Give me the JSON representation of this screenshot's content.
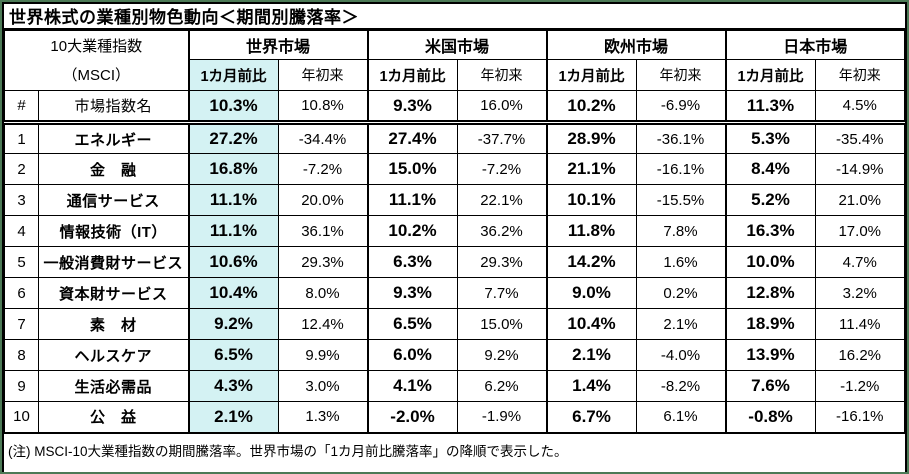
{
  "title": "世界株式の業種別物色動向＜期間別騰落率＞",
  "colors": {
    "highlight_cyan": "#d4f2f3",
    "outer_frame_green": "#4c7a56",
    "table_border": "#000000",
    "text": "#000000",
    "background": "#ffffff"
  },
  "header": {
    "index_group_line1": "10大業種指数",
    "index_group_line2": "（MSCI）",
    "markets": [
      "世界市場",
      "米国市場",
      "欧州市場",
      "日本市場"
    ],
    "sub_monthly": "1カ月前比",
    "sub_ytd": "年初来",
    "rank_header": "#",
    "name_header": "市場指数名"
  },
  "table": {
    "index_row": {
      "values": [
        "10.3%",
        "10.8%",
        "9.3%",
        "16.0%",
        "10.2%",
        "-6.9%",
        "11.3%",
        "4.5%"
      ]
    },
    "rows": [
      {
        "rank": "1",
        "name": "エネルギー",
        "values": [
          "27.2%",
          "-34.4%",
          "27.4%",
          "-37.7%",
          "28.9%",
          "-36.1%",
          "5.3%",
          "-35.4%"
        ]
      },
      {
        "rank": "2",
        "name": "金　融",
        "values": [
          "16.8%",
          "-7.2%",
          "15.0%",
          "-7.2%",
          "21.1%",
          "-16.1%",
          "8.4%",
          "-14.9%"
        ]
      },
      {
        "rank": "3",
        "name": "通信サービス",
        "values": [
          "11.1%",
          "20.0%",
          "11.1%",
          "22.1%",
          "10.1%",
          "-15.5%",
          "5.2%",
          "21.0%"
        ]
      },
      {
        "rank": "4",
        "name": "情報技術（IT）",
        "values": [
          "11.1%",
          "36.1%",
          "10.2%",
          "36.2%",
          "11.8%",
          "7.8%",
          "16.3%",
          "17.0%"
        ]
      },
      {
        "rank": "5",
        "name": "一般消費財サービス",
        "values": [
          "10.6%",
          "29.3%",
          "6.3%",
          "29.3%",
          "14.2%",
          "1.6%",
          "10.0%",
          "4.7%"
        ]
      },
      {
        "rank": "6",
        "name": "資本財サービス",
        "values": [
          "10.4%",
          "8.0%",
          "9.3%",
          "7.7%",
          "9.0%",
          "0.2%",
          "12.8%",
          "3.2%"
        ]
      },
      {
        "rank": "7",
        "name": "素　材",
        "values": [
          "9.2%",
          "12.4%",
          "6.5%",
          "15.0%",
          "10.4%",
          "2.1%",
          "18.9%",
          "11.4%"
        ]
      },
      {
        "rank": "8",
        "name": "ヘルスケア",
        "values": [
          "6.5%",
          "9.9%",
          "6.0%",
          "9.2%",
          "2.1%",
          "-4.0%",
          "13.9%",
          "16.2%"
        ]
      },
      {
        "rank": "9",
        "name": "生活必需品",
        "values": [
          "4.3%",
          "3.0%",
          "4.1%",
          "6.2%",
          "1.4%",
          "-8.2%",
          "7.6%",
          "-1.2%"
        ]
      },
      {
        "rank": "10",
        "name": "公　益",
        "values": [
          "2.1%",
          "1.3%",
          "-2.0%",
          "-1.9%",
          "6.7%",
          "6.1%",
          "-0.8%",
          "-16.1%"
        ]
      }
    ]
  },
  "footnote": "(注) MSCI-10大業種指数の期間騰落率。世界市場の「1カ月前比騰落率」の降順で表示した。",
  "chart_data": {
    "type": "table",
    "title": "世界株式の業種別物色動向＜期間別騰落率＞",
    "unit": "%",
    "group_headers": [
      "世界市場",
      "米国市場",
      "欧州市場",
      "日本市場"
    ],
    "sub_headers": [
      "1カ月前比",
      "年初来"
    ],
    "categories": [
      "市場指数名",
      "エネルギー",
      "金融",
      "通信サービス",
      "情報技術（IT）",
      "一般消費財サービス",
      "資本財サービス",
      "素材",
      "ヘルスケア",
      "生活必需品",
      "公益"
    ],
    "series": [
      {
        "name": "世界市場 1カ月前比",
        "values": [
          10.3,
          27.2,
          16.8,
          11.1,
          11.1,
          10.6,
          10.4,
          9.2,
          6.5,
          4.3,
          2.1
        ]
      },
      {
        "name": "世界市場 年初来",
        "values": [
          10.8,
          -34.4,
          -7.2,
          20.0,
          36.1,
          29.3,
          8.0,
          12.4,
          9.9,
          3.0,
          1.3
        ]
      },
      {
        "name": "米国市場 1カ月前比",
        "values": [
          9.3,
          27.4,
          15.0,
          11.1,
          10.2,
          6.3,
          9.3,
          6.5,
          6.0,
          4.1,
          -2.0
        ]
      },
      {
        "name": "米国市場 年初来",
        "values": [
          16.0,
          -37.7,
          -7.2,
          22.1,
          36.2,
          29.3,
          7.7,
          15.0,
          9.2,
          6.2,
          -1.9
        ]
      },
      {
        "name": "欧州市場 1カ月前比",
        "values": [
          10.2,
          28.9,
          21.1,
          10.1,
          11.8,
          14.2,
          9.0,
          10.4,
          2.1,
          1.4,
          6.7
        ]
      },
      {
        "name": "欧州市場 年初来",
        "values": [
          -6.9,
          -36.1,
          -16.1,
          -15.5,
          7.8,
          1.6,
          0.2,
          2.1,
          -4.0,
          -8.2,
          6.1
        ]
      },
      {
        "name": "日本市場 1カ月前比",
        "values": [
          11.3,
          5.3,
          8.4,
          5.2,
          16.3,
          10.0,
          12.8,
          18.9,
          13.9,
          7.6,
          -0.8
        ]
      },
      {
        "name": "日本市場 年初来",
        "values": [
          4.5,
          -35.4,
          -14.9,
          21.0,
          17.0,
          4.7,
          3.2,
          11.4,
          16.2,
          -1.2,
          -16.1
        ]
      }
    ],
    "sort_note": "世界市場の1カ月前比騰落率の降順で表示",
    "layout": {
      "highlight_column": "世界市場 1カ月前比",
      "grid": true,
      "legend_position": "none"
    }
  }
}
